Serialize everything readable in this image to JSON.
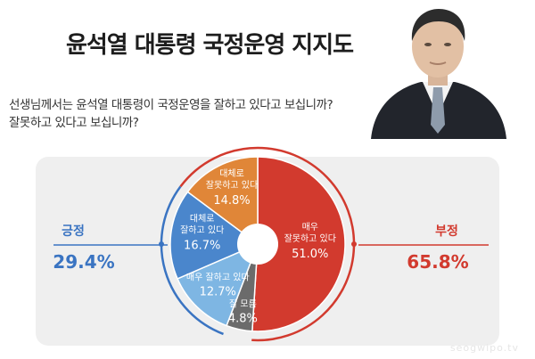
{
  "header": {
    "title": "윤석열 대통령 국정운영 지지도",
    "question_line1": "선생님께서는 윤석열 대통령이 국정운영을 잘하고 있다고 보십니까?",
    "question_line2": "잘못하고 있다고 보십니까?"
  },
  "chart_data": {
    "type": "pie",
    "style": "donut",
    "slices": [
      {
        "label_line1": "매우",
        "label_line2": "잘못하고 있다",
        "value": 51.0,
        "display": "51.0%",
        "color": "#d23a2e"
      },
      {
        "label_line1": "잘 모름",
        "label_line2": "",
        "value": 4.8,
        "display": "4.8%",
        "color": "#6b6b6b"
      },
      {
        "label_line1": "매우 잘하고 있다",
        "label_line2": "",
        "value": 12.7,
        "display": "12.7%",
        "color": "#7eb6e3"
      },
      {
        "label_line1": "대체로",
        "label_line2": "잘하고 있다",
        "value": 16.7,
        "display": "16.7%",
        "color": "#4a86cc"
      },
      {
        "label_line1": "대체로",
        "label_line2": "잘못하고 있다",
        "value": 14.8,
        "display": "14.8%",
        "color": "#e08638"
      }
    ],
    "groups": {
      "positive": {
        "label": "긍정",
        "display": "29.4%",
        "color": "#3a74c2"
      },
      "negative": {
        "label": "부정",
        "display": "65.8%",
        "color": "#d23a2e"
      }
    }
  },
  "watermark": "seogwipo.tv"
}
